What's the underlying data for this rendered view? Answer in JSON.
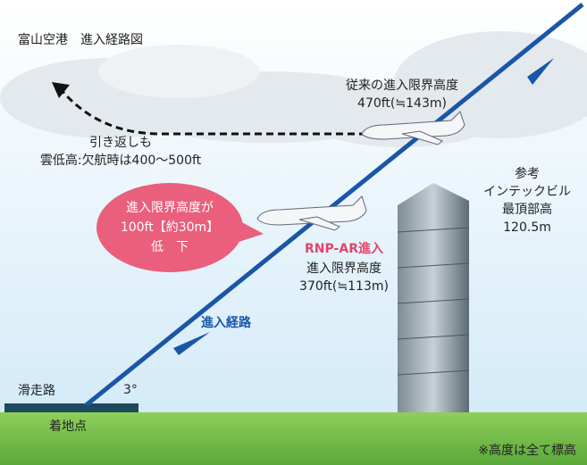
{
  "header": {
    "title": "富山空港　進入経路図"
  },
  "missed_approach": {
    "lines": [
      "引き返しも",
      "雲低高:欠航時は400～500ft"
    ]
  },
  "conventional": {
    "lines": [
      "従来の進入限界高度",
      "470ft(≒143m)"
    ]
  },
  "building": {
    "lines": [
      "参考",
      "インテックビル",
      "最頂部高",
      "120.5m"
    ]
  },
  "bubble": {
    "lines": [
      "進入限界高度が",
      "100ft【約30m】",
      "低　下"
    ]
  },
  "rnp_ar": {
    "title": "RNP-AR進入",
    "lines": [
      "進入限界高度",
      "370ft(≒113m)"
    ]
  },
  "path_label": "進入経路",
  "runway": "滑走路",
  "angle": "3°",
  "touchdown": "着地点",
  "note": "※高度は全て標高"
}
